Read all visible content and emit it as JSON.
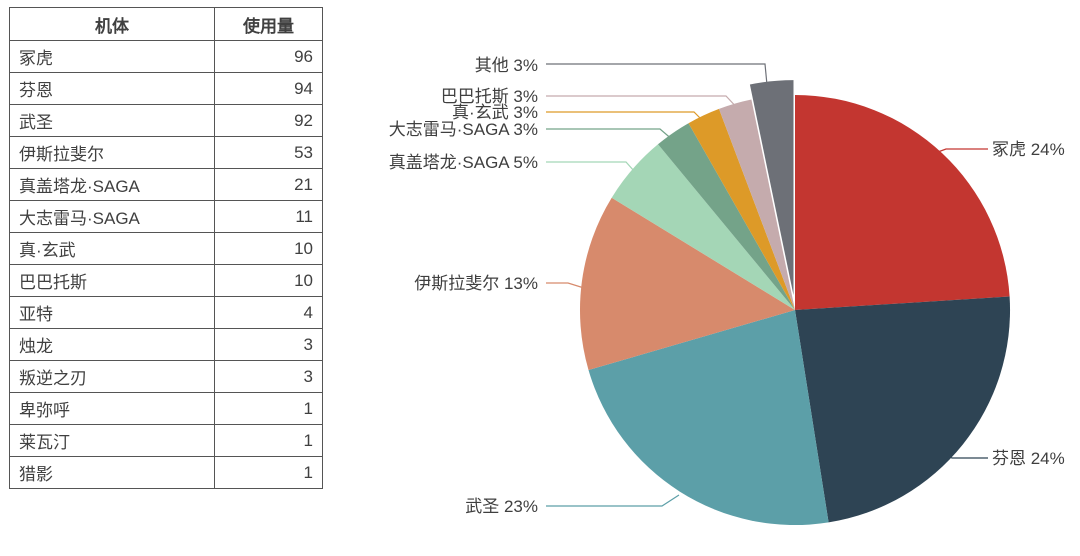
{
  "table": {
    "columns": [
      "机体",
      "使用量"
    ],
    "rows": [
      [
        "冢虎",
        96
      ],
      [
        "芬恩",
        94
      ],
      [
        "武圣",
        92
      ],
      [
        "伊斯拉斐尔",
        53
      ],
      [
        "真盖塔龙·SAGA",
        21
      ],
      [
        "大志雷马·SAGA",
        11
      ],
      [
        "真·玄武",
        10
      ],
      [
        "巴巴托斯",
        10
      ],
      [
        "亚特",
        4
      ],
      [
        "烛龙",
        3
      ],
      [
        "叛逆之刃",
        3
      ],
      [
        "卑弥呼",
        1
      ],
      [
        "莱瓦汀",
        1
      ],
      [
        "猎影",
        1
      ]
    ]
  },
  "chart_data": {
    "type": "pie",
    "title": "",
    "direction": "clockwise",
    "start_angle_deg": 0,
    "total": 400,
    "label_format": "{name} {pct}%",
    "text_color": "#3F3F3F",
    "slices": [
      {
        "name": "冢虎",
        "value": 96,
        "pct": 24,
        "color": "#C33630",
        "exploded": false
      },
      {
        "name": "芬恩",
        "value": 94,
        "pct": 24,
        "color": "#2E4454",
        "exploded": false
      },
      {
        "name": "武圣",
        "value": 92,
        "pct": 23,
        "color": "#5C9FA8",
        "exploded": false
      },
      {
        "name": "伊斯拉斐尔",
        "value": 53,
        "pct": 13,
        "color": "#D78A6C",
        "exploded": false
      },
      {
        "name": "真盖塔龙·SAGA",
        "value": 21,
        "pct": 5,
        "color": "#A4D6B6",
        "exploded": false
      },
      {
        "name": "大志雷马·SAGA",
        "value": 11,
        "pct": 3,
        "color": "#74A389",
        "exploded": false
      },
      {
        "name": "真·玄武",
        "value": 10,
        "pct": 3,
        "color": "#DD9A28",
        "exploded": false
      },
      {
        "name": "巴巴托斯",
        "value": 10,
        "pct": 3,
        "color": "#C5ABAD",
        "exploded": false
      },
      {
        "name": "其他",
        "value": 13,
        "pct": 3,
        "color": "#6D7077",
        "exploded": true
      }
    ]
  }
}
